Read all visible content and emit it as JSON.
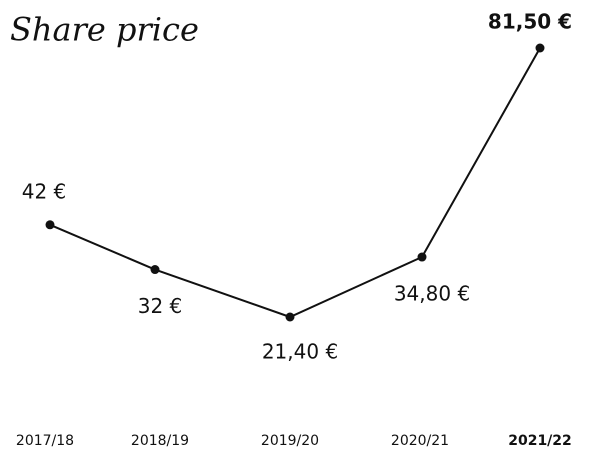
{
  "chart_data": {
    "type": "line",
    "title": "Share price",
    "categories": [
      "2017/18",
      "2018/19",
      "2019/20",
      "2020/21",
      "2021/22"
    ],
    "values": [
      42,
      32,
      21.4,
      34.8,
      81.5
    ],
    "value_labels": [
      "42 €",
      "32 €",
      "21,40 €",
      "34,80 €",
      "81,50 €"
    ],
    "color": "#111111"
  }
}
